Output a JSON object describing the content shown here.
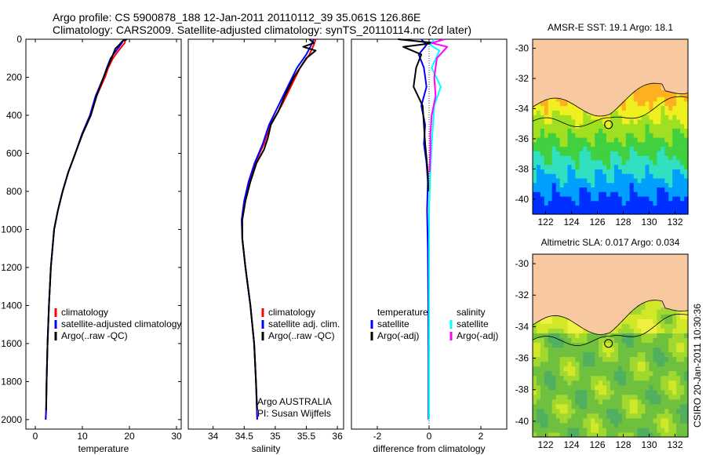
{
  "header": {
    "line1": "Argo profile: CS 5900878_188 12-Jan-2011 20110112_39 35.061S 126.86E",
    "line2": "Climatology: CARS2009. Satellite-adjusted climatology: synTS_20110114.nc (2d later)"
  },
  "side_label": "CSIRO 20-Jan-2011 10:30:36",
  "chart_data": [
    {
      "type": "line",
      "xlabel": "temperature",
      "ylabel": "",
      "xlim": [
        -2,
        31
      ],
      "ylim": [
        2050,
        0
      ],
      "xticks": [
        "0",
        "10",
        "20",
        "30"
      ],
      "xtick_values": [
        0,
        10,
        20,
        30
      ],
      "yticks": [
        "0",
        "200",
        "400",
        "600",
        "800",
        "1000",
        "1200",
        "1400",
        "1600",
        "1800",
        "2000"
      ],
      "ytick_values": [
        0,
        200,
        400,
        600,
        800,
        1000,
        1200,
        1400,
        1600,
        1800,
        2000
      ],
      "series": [
        {
          "name": "climatology",
          "color": "#ff0000",
          "x": [
            19.2,
            19.0,
            18.0,
            16.5,
            15.5,
            14.8,
            13.0,
            11.8,
            10.0,
            8.5,
            7.0,
            5.8,
            4.8,
            4.0,
            3.3,
            2.9,
            2.6,
            2.4,
            2.3,
            2.2
          ],
          "y": [
            0,
            20,
            50,
            100,
            150,
            200,
            300,
            400,
            500,
            600,
            700,
            800,
            900,
            1000,
            1200,
            1400,
            1600,
            1800,
            1950,
            2000
          ]
        },
        {
          "name": "satellite-adjusted climatology",
          "color": "#0000ff",
          "x": [
            18.8,
            18.4,
            17.5,
            16.0,
            15.2,
            14.5,
            12.8,
            11.6,
            9.9,
            8.5,
            7.0,
            5.8,
            4.8,
            4.0,
            3.3,
            2.9,
            2.6,
            2.4,
            2.3,
            2.2
          ],
          "y": [
            0,
            20,
            50,
            100,
            150,
            200,
            300,
            400,
            500,
            600,
            700,
            800,
            900,
            1000,
            1200,
            1400,
            1600,
            1800,
            1950,
            2000
          ]
        },
        {
          "name": "Argo(..raw -QC)",
          "color": "#000000",
          "x": [
            19.5,
            18.5,
            17.8,
            17.0,
            16.2,
            15.3,
            14.5,
            13.0,
            11.8,
            10.0,
            8.5,
            7.0,
            5.8,
            4.8,
            4.0,
            3.3,
            2.9,
            2.6,
            2.4,
            2.3
          ],
          "y": [
            0,
            10,
            30,
            50,
            100,
            150,
            200,
            300,
            400,
            500,
            600,
            700,
            800,
            900,
            1000,
            1200,
            1400,
            1600,
            1800,
            1950
          ]
        }
      ]
    },
    {
      "type": "line",
      "xlabel": "salinity",
      "ylabel": "",
      "xlim": [
        33.6,
        36.1
      ],
      "ylim": [
        2050,
        0
      ],
      "xticks": [
        "34",
        "34.5",
        "35",
        "35.5",
        "36"
      ],
      "xtick_values": [
        34,
        34.5,
        35,
        35.5,
        36
      ],
      "yticks": [],
      "series": [
        {
          "name": "climatology",
          "color": "#ff0000",
          "x": [
            35.65,
            35.62,
            35.55,
            35.4,
            35.25,
            35.1,
            34.92,
            34.82,
            34.68,
            34.58,
            34.5,
            34.46,
            34.47,
            34.52,
            34.6,
            34.66,
            34.69,
            34.71
          ],
          "y": [
            0,
            30,
            80,
            150,
            250,
            350,
            450,
            550,
            650,
            750,
            850,
            950,
            1050,
            1200,
            1400,
            1600,
            1800,
            2000
          ]
        },
        {
          "name": "satellite adj. clim.",
          "color": "#0000ff",
          "x": [
            35.62,
            35.58,
            35.5,
            35.35,
            35.2,
            35.05,
            34.9,
            34.8,
            34.67,
            34.57,
            34.5,
            34.46,
            34.47,
            34.52,
            34.6,
            34.66,
            34.69,
            34.71
          ],
          "y": [
            0,
            30,
            80,
            150,
            250,
            350,
            450,
            550,
            650,
            750,
            850,
            950,
            1050,
            1200,
            1400,
            1600,
            1800,
            2000
          ]
        },
        {
          "name": "Argo(..raw -QC)",
          "color": "#000000",
          "x": [
            35.55,
            35.62,
            35.45,
            35.65,
            35.5,
            35.3,
            35.15,
            35.05,
            34.93,
            34.88,
            34.82,
            34.7,
            34.6,
            34.52,
            34.47,
            34.47,
            34.52,
            34.6,
            34.66,
            34.69,
            34.71
          ],
          "y": [
            0,
            20,
            40,
            60,
            100,
            200,
            300,
            380,
            450,
            520,
            580,
            650,
            750,
            850,
            950,
            1050,
            1200,
            1400,
            1600,
            1800,
            1950
          ]
        }
      ]
    },
    {
      "type": "line",
      "xlabel": "difference from climatology",
      "ylabel": "",
      "xlim": [
        -3,
        3
      ],
      "ylim": [
        2050,
        0
      ],
      "xticks": [
        "-2",
        "0",
        "2"
      ],
      "xtick_values": [
        -2,
        0,
        2
      ],
      "yticks": [],
      "legend_headers": [
        "temperature",
        "salinity"
      ],
      "series": [
        {
          "name": "satellite",
          "group": "temperature",
          "color": "#0000ff",
          "x": [
            -0.3,
            -0.1,
            -0.4,
            -0.2,
            -0.1,
            -0.3,
            -0.15,
            -0.2,
            -0.1,
            -0.05,
            -0.08,
            -0.05,
            -0.03,
            -0.02,
            -0.02
          ],
          "y": [
            0,
            30,
            80,
            150,
            250,
            350,
            450,
            550,
            650,
            750,
            900,
            1100,
            1400,
            1700,
            2000
          ]
        },
        {
          "name": "Argo(-adj)",
          "group": "temperature",
          "color": "#000000",
          "x": [
            -1.2,
            0.2,
            -1.0,
            -0.3,
            -0.5,
            -0.6,
            -0.25,
            -0.2,
            -0.15,
            -0.05,
            -0.03
          ],
          "y": [
            0,
            20,
            40,
            80,
            150,
            250,
            350,
            450,
            550,
            700,
            800
          ]
        },
        {
          "name": "satellite",
          "group": "salinity",
          "color": "#00ffff",
          "x": [
            0.2,
            0.05,
            0.4,
            0.1,
            0.45,
            0.2,
            0.15,
            0.1,
            0.05,
            0.0,
            0.0,
            0.0,
            0.0
          ],
          "y": [
            0,
            30,
            60,
            150,
            250,
            350,
            450,
            550,
            700,
            900,
            1200,
            1600,
            2000
          ]
        },
        {
          "name": "Argo(-adj)",
          "group": "salinity",
          "color": "#ff00ff",
          "x": [
            0.6,
            0.1,
            0.7,
            0.3,
            0.2,
            0.25,
            0.1,
            0.05,
            0.05,
            0.02
          ],
          "y": [
            0,
            20,
            40,
            100,
            200,
            300,
            400,
            500,
            600,
            700
          ]
        }
      ]
    },
    {
      "type": "heatmap",
      "title": "AMSR-E SST: 19.1 Argo: 18.1",
      "xlim": [
        121,
        133
      ],
      "ylim": [
        -41,
        -29.4
      ],
      "xticks": [
        "122",
        "124",
        "126",
        "128",
        "130",
        "132"
      ],
      "xtick_values": [
        122,
        124,
        126,
        128,
        130,
        132
      ],
      "yticks": [
        "-30",
        "-32",
        "-34",
        "-36",
        "-38",
        "-40"
      ],
      "ytick_values": [
        -30,
        -32,
        -34,
        -36,
        -38,
        -40
      ],
      "marker": {
        "lon": 126.86,
        "lat": -35.06
      }
    },
    {
      "type": "heatmap",
      "title": "Altimetric SLA: 0.017 Argo: 0.034",
      "xlim": [
        121,
        133
      ],
      "ylim": [
        -41,
        -29.4
      ],
      "xticks": [
        "122",
        "124",
        "126",
        "128",
        "130",
        "132"
      ],
      "xtick_values": [
        122,
        124,
        126,
        128,
        130,
        132
      ],
      "yticks": [
        "-30",
        "-32",
        "-34",
        "-36",
        "-38",
        "-40"
      ],
      "ytick_values": [
        -30,
        -32,
        -34,
        -36,
        -38,
        -40
      ],
      "marker": {
        "lon": 126.86,
        "lat": -35.06
      }
    }
  ],
  "legends": {
    "temperature": [
      "climatology",
      "satellite-adjusted climatology",
      "Argo(..raw -QC)"
    ],
    "salinity": [
      "climatology",
      "satellite adj. clim.",
      "Argo(..raw -QC)"
    ],
    "diff_left_header": "temperature",
    "diff_right_header": "salinity",
    "diff_left": [
      "satellite",
      "Argo(-adj)"
    ],
    "diff_right": [
      "satellite",
      "Argo(-adj)"
    ]
  },
  "float_info": {
    "line1": "Argo AUSTRALIA",
    "line2": "PI: Susan Wijffels"
  },
  "colors": {
    "land": "#f8c8a0",
    "climatology": "#ff0000",
    "satellite": "#0000ff",
    "argo": "#000000",
    "sal_satellite": "#00ffff",
    "sal_argo": "#ff00ff"
  }
}
